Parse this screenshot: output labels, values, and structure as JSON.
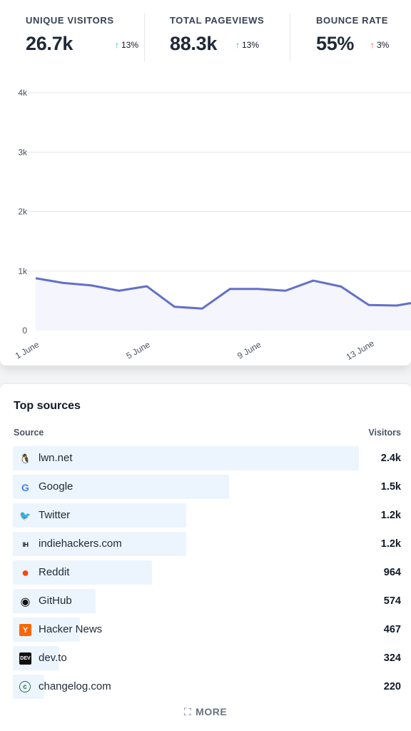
{
  "metrics": [
    {
      "label": "UNIQUE VISITORS",
      "value": "26.7k",
      "change": "13%",
      "direction": "up",
      "tone": "good"
    },
    {
      "label": "TOTAL PAGEVIEWS",
      "value": "88.3k",
      "change": "13%",
      "direction": "up",
      "tone": "good"
    },
    {
      "label": "BOUNCE RATE",
      "value": "55%",
      "change": "3%",
      "direction": "up",
      "tone": "bad"
    }
  ],
  "chart_data": {
    "type": "area",
    "x": [
      "1 June",
      "2 June",
      "3 June",
      "4 June",
      "5 June",
      "6 June",
      "7 June",
      "8 June",
      "9 June",
      "10 June",
      "11 June",
      "12 June",
      "13 June",
      "14 June",
      "15 June"
    ],
    "values": [
      880,
      800,
      760,
      670,
      745,
      400,
      370,
      700,
      700,
      670,
      840,
      740,
      430,
      420,
      500
    ],
    "y_ticks": [
      0,
      1000,
      2000,
      3000,
      4000
    ],
    "y_tick_labels": [
      "0",
      "1k",
      "2k",
      "3k",
      "4k"
    ],
    "x_tick_labels": [
      "1 June",
      "5 June",
      "9 June",
      "13 June"
    ],
    "ylim": [
      0,
      4000
    ],
    "line_color": "#6270c8",
    "fill_color": "#f4f5fd",
    "grid": true
  },
  "sources": {
    "title": "Top sources",
    "col_source": "Source",
    "col_visitors": "Visitors",
    "max": 2400,
    "items": [
      {
        "name": "lwn.net",
        "visitors_label": "2.4k",
        "visitors": 2400,
        "icon": "lwn-penguin-icon"
      },
      {
        "name": "Google",
        "visitors_label": "1.5k",
        "visitors": 1500,
        "icon": "google-icon"
      },
      {
        "name": "Twitter",
        "visitors_label": "1.2k",
        "visitors": 1200,
        "icon": "twitter-icon"
      },
      {
        "name": "indiehackers.com",
        "visitors_label": "1.2k",
        "visitors": 1200,
        "icon": "indiehackers-icon"
      },
      {
        "name": "Reddit",
        "visitors_label": "964",
        "visitors": 964,
        "icon": "reddit-icon"
      },
      {
        "name": "GitHub",
        "visitors_label": "574",
        "visitors": 574,
        "icon": "github-icon"
      },
      {
        "name": "Hacker News",
        "visitors_label": "467",
        "visitors": 467,
        "icon": "hacker-news-icon"
      },
      {
        "name": "dev.to",
        "visitors_label": "324",
        "visitors": 324,
        "icon": "devto-icon"
      },
      {
        "name": "changelog.com",
        "visitors_label": "220",
        "visitors": 220,
        "icon": "changelog-icon"
      }
    ],
    "more_label": "MORE"
  }
}
